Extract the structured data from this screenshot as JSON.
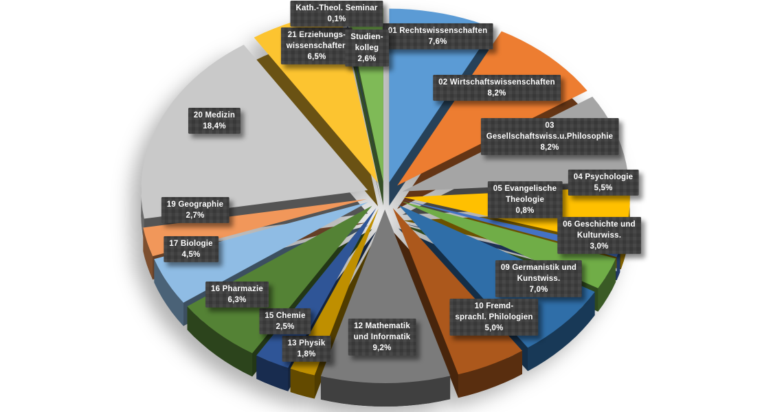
{
  "chart_data": {
    "type": "pie",
    "style": "3d-exploded",
    "title": "",
    "direction": "clockwise",
    "start_angle_deg": 0,
    "unit_suffix": "%",
    "decimal_separator": ",",
    "legend": "none",
    "label_box_color": "#3E3E3E",
    "label_text_color": "#FFFFFF",
    "background_color": "#FFFFFF",
    "slices": [
      {
        "id": "01",
        "name": "01 Rechtswissenschaften",
        "value": 7.6,
        "percent": "7,6%",
        "color": "#5B9BD5",
        "label_lines": [
          "01 Rechtswissenschaften",
          "7,6%"
        ]
      },
      {
        "id": "02",
        "name": "02 Wirtschaftswissenschaften",
        "value": 8.2,
        "percent": "8,2%",
        "color": "#ED7D31",
        "label_lines": [
          "02 Wirtschaftswissenschaften",
          "8,2%"
        ]
      },
      {
        "id": "03",
        "name": "03 Gesellschaftswiss.u.Philosophie",
        "value": 8.2,
        "percent": "8,2%",
        "color": "#A5A5A5",
        "label_lines": [
          "03",
          "Gesellschaftswiss.u.Philosophie",
          "8,2%"
        ]
      },
      {
        "id": "04",
        "name": "04 Psychologie",
        "value": 5.5,
        "percent": "5,5%",
        "color": "#FFC000",
        "label_lines": [
          "04 Psychologie",
          "5,5%"
        ]
      },
      {
        "id": "05",
        "name": "05 Evangelische Theologie",
        "value": 0.8,
        "percent": "0,8%",
        "color": "#4472C4",
        "label_lines": [
          "05 Evangelische",
          "Theologie",
          "0,8%"
        ]
      },
      {
        "id": "06",
        "name": "06 Geschichte und Kulturwiss.",
        "value": 3.0,
        "percent": "3,0%",
        "color": "#70AD47",
        "label_lines": [
          "06 Geschichte und",
          "Kulturwiss.",
          "3,0%"
        ]
      },
      {
        "id": "09",
        "name": "09 Germanistik und Kunstwiss.",
        "value": 7.0,
        "percent": "7,0%",
        "color": "#2F6EA8",
        "label_lines": [
          "09 Germanistik und",
          "Kunstwiss.",
          "7,0%"
        ]
      },
      {
        "id": "10",
        "name": "10 Fremdsprachl. Philologien",
        "value": 5.0,
        "percent": "5,0%",
        "color": "#AC581C",
        "label_lines": [
          "10 Fremd-",
          "sprachl. Philologien",
          "5,0%"
        ]
      },
      {
        "id": "12",
        "name": "12 Mathematik und Informatik",
        "value": 9.2,
        "percent": "9,2%",
        "color": "#7B7B7B",
        "label_lines": [
          "12 Mathematik",
          "und Informatik",
          "9,2%"
        ]
      },
      {
        "id": "13",
        "name": "13 Physik",
        "value": 1.8,
        "percent": "1,8%",
        "color": "#BF8F00",
        "label_lines": [
          "13 Physik",
          "1,8%"
        ]
      },
      {
        "id": "15",
        "name": "15 Chemie",
        "value": 2.5,
        "percent": "2,5%",
        "color": "#2F5597",
        "label_lines": [
          "15 Chemie",
          "2,5%"
        ]
      },
      {
        "id": "16",
        "name": "16 Pharmazie",
        "value": 6.3,
        "percent": "6,3%",
        "color": "#548235",
        "label_lines": [
          "16 Pharmazie",
          "6,3%"
        ]
      },
      {
        "id": "17",
        "name": "17 Biologie",
        "value": 4.5,
        "percent": "4,5%",
        "color": "#8FBCE4",
        "label_lines": [
          "17 Biologie",
          "4,5%"
        ]
      },
      {
        "id": "19",
        "name": "19 Geographie",
        "value": 2.7,
        "percent": "2,7%",
        "color": "#F1975A",
        "label_lines": [
          "19 Geographie",
          "2,7%"
        ]
      },
      {
        "id": "20",
        "name": "20 Medizin",
        "value": 18.4,
        "percent": "18,4%",
        "color": "#C9C9C9",
        "label_lines": [
          "20 Medizin",
          "18,4%"
        ]
      },
      {
        "id": "21",
        "name": "21 Erziehungswissenschaften",
        "value": 6.5,
        "percent": "6,5%",
        "color": "#FCC430",
        "label_lines": [
          "21 Erziehungs-",
          "wissenschaften",
          "6,5%"
        ]
      },
      {
        "id": "kath",
        "name": "Kath.-Theol. Seminar",
        "value": 0.1,
        "percent": "0,1%",
        "color": "#24375C",
        "label_lines": [
          "Kath.-Theol. Seminar",
          "0,1%"
        ]
      },
      {
        "id": "stud",
        "name": "Studienkolleg",
        "value": 2.6,
        "percent": "2,6%",
        "color": "#7FBA57",
        "label_lines": [
          "Studien-",
          "kolleg",
          "2,6%"
        ]
      }
    ]
  }
}
